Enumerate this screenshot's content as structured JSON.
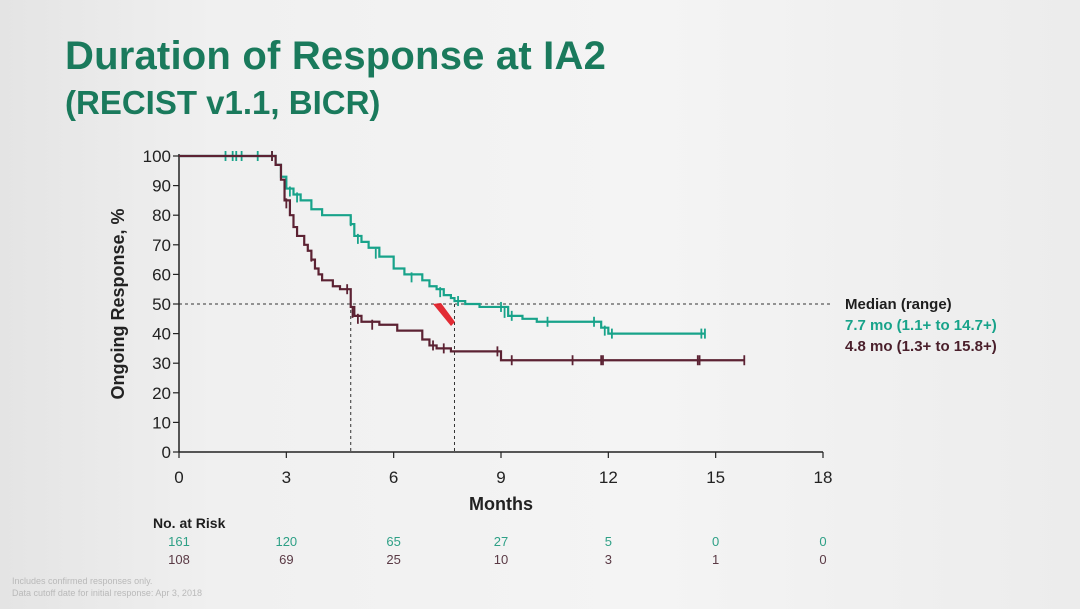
{
  "slide": {
    "title": "Duration of Response at IA2",
    "subtitle": "(RECIST v1.1, BICR)",
    "footnote_lines": [
      "Includes confirmed responses only.",
      "Data cutoff date for initial response: Apr 3, 2018"
    ]
  },
  "colors": {
    "title": "#1a7a5c",
    "series1": "#18a38a",
    "series2": "#5c2233",
    "axis": "#222222",
    "arrow": "#e0151f"
  },
  "median_block": {
    "heading": "Median (range)",
    "series1_text": "7.7 mo (1.1+ to 14.7+)",
    "series2_text": "4.8 mo (1.3+ to 15.8+)"
  },
  "chart_data": {
    "type": "line",
    "title": "",
    "xlabel": "Months",
    "ylabel": "Ongoing Response, %",
    "xlim": [
      0,
      18
    ],
    "ylim": [
      0,
      100
    ],
    "xticks": [
      0,
      3,
      6,
      9,
      12,
      15,
      18
    ],
    "yticks": [
      0,
      10,
      20,
      30,
      40,
      50,
      60,
      70,
      80,
      90,
      100
    ],
    "reference_line": {
      "y": 50,
      "style": "dashed"
    },
    "median_drop_lines": [
      4.8,
      7.7
    ],
    "series": [
      {
        "color": "#18a38a",
        "median": 7.7,
        "points": [
          [
            0,
            100
          ],
          [
            2.5,
            100
          ],
          [
            2.7,
            97
          ],
          [
            2.85,
            93
          ],
          [
            3.0,
            89
          ],
          [
            3.2,
            87
          ],
          [
            3.4,
            85
          ],
          [
            3.7,
            82
          ],
          [
            4.0,
            80
          ],
          [
            4.6,
            80
          ],
          [
            4.8,
            77
          ],
          [
            4.9,
            73
          ],
          [
            5.1,
            71
          ],
          [
            5.3,
            69
          ],
          [
            5.6,
            66
          ],
          [
            6.0,
            62
          ],
          [
            6.3,
            60
          ],
          [
            6.8,
            58
          ],
          [
            7.0,
            56
          ],
          [
            7.2,
            55
          ],
          [
            7.4,
            53
          ],
          [
            7.6,
            52
          ],
          [
            7.7,
            51
          ],
          [
            8.0,
            50
          ],
          [
            8.4,
            49
          ],
          [
            8.8,
            49
          ],
          [
            9.2,
            46
          ],
          [
            9.6,
            45
          ],
          [
            10.0,
            44
          ],
          [
            11.5,
            44
          ],
          [
            11.8,
            42
          ],
          [
            12.0,
            40
          ],
          [
            14.7,
            40
          ]
        ],
        "censored": [
          [
            1.3,
            100
          ],
          [
            1.5,
            100
          ],
          [
            1.6,
            100
          ],
          [
            1.75,
            100
          ],
          [
            2.2,
            100
          ],
          [
            2.6,
            100
          ],
          [
            3.1,
            88
          ],
          [
            3.3,
            86
          ],
          [
            4.8,
            78
          ],
          [
            5.0,
            72
          ],
          [
            5.5,
            67
          ],
          [
            6.5,
            59
          ],
          [
            7.3,
            54
          ],
          [
            7.8,
            51
          ],
          [
            9.0,
            49
          ],
          [
            9.1,
            47
          ],
          [
            9.3,
            46
          ],
          [
            10.3,
            44
          ],
          [
            11.6,
            44
          ],
          [
            11.9,
            41
          ],
          [
            12.1,
            40
          ],
          [
            14.6,
            40
          ],
          [
            14.7,
            40
          ]
        ]
      },
      {
        "color": "#5c2233",
        "median": 4.8,
        "points": [
          [
            0,
            100
          ],
          [
            2.5,
            100
          ],
          [
            2.7,
            97
          ],
          [
            2.85,
            92
          ],
          [
            2.95,
            85
          ],
          [
            3.1,
            80
          ],
          [
            3.2,
            76
          ],
          [
            3.3,
            73
          ],
          [
            3.5,
            70
          ],
          [
            3.6,
            68
          ],
          [
            3.7,
            65
          ],
          [
            3.8,
            62
          ],
          [
            3.9,
            60
          ],
          [
            4.0,
            58
          ],
          [
            4.3,
            56
          ],
          [
            4.5,
            55
          ],
          [
            4.75,
            55
          ],
          [
            4.8,
            49
          ],
          [
            4.9,
            46
          ],
          [
            5.1,
            44
          ],
          [
            5.6,
            43
          ],
          [
            6.1,
            41
          ],
          [
            6.8,
            38
          ],
          [
            7.0,
            36
          ],
          [
            7.2,
            35
          ],
          [
            7.6,
            34
          ],
          [
            8.8,
            34
          ],
          [
            9.0,
            31
          ],
          [
            15.8,
            31
          ]
        ],
        "censored": [
          [
            2.6,
            100
          ],
          [
            3.0,
            84
          ],
          [
            3.7,
            66
          ],
          [
            4.7,
            55
          ],
          [
            4.85,
            47
          ],
          [
            5.0,
            45
          ],
          [
            5.4,
            43
          ],
          [
            7.1,
            36
          ],
          [
            7.4,
            35
          ],
          [
            8.9,
            34
          ],
          [
            9.3,
            31
          ],
          [
            11.0,
            31
          ],
          [
            11.8,
            31
          ],
          [
            11.85,
            31
          ],
          [
            14.5,
            31
          ],
          [
            14.55,
            31
          ],
          [
            15.8,
            31
          ]
        ]
      }
    ]
  },
  "risk_table": {
    "title": "No. at Risk",
    "months": [
      0,
      3,
      6,
      9,
      12,
      15,
      18
    ],
    "series1_counts": [
      "161",
      "120",
      "65",
      "27",
      "5",
      "0",
      "0"
    ],
    "series2_counts": [
      "108",
      "69",
      "25",
      "10",
      "3",
      "1",
      "0"
    ]
  }
}
